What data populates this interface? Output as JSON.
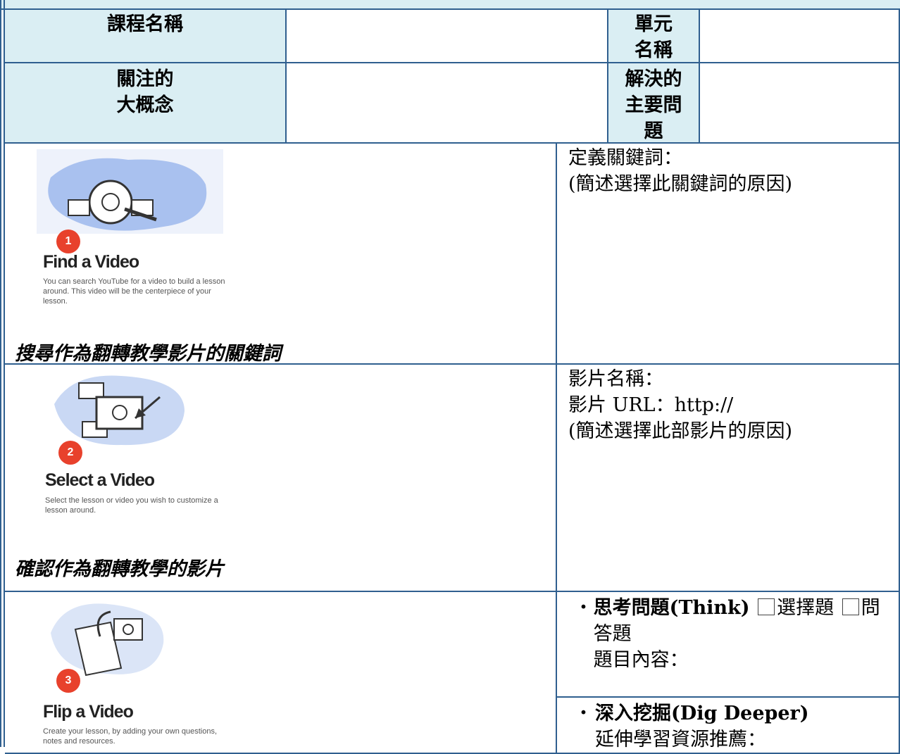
{
  "header": {
    "course_name_label": "課程名稱",
    "unit_name_label": "單元名稱",
    "big_idea_label_lines": [
      "關注的",
      "大概念"
    ],
    "main_question_label": "解決的主要問題"
  },
  "steps": [
    {
      "number": "1",
      "title": "Find a Video",
      "description": "You can search YouTube for a video to build a lesson around. This video will be the centerpiece of your lesson.",
      "caption": "搜尋作為翻轉教學影片的關鍵詞",
      "notes": [
        "定義關鍵詞：",
        "(簡述選擇此關鍵詞的原因)"
      ]
    },
    {
      "number": "2",
      "title": "Select a Video",
      "description": "Select the lesson or video you wish to customize a lesson around.",
      "notes": [
        "影片名稱：",
        "影片 URL：http://",
        "(簡述選擇此部影片的原因)"
      ],
      "caption": "確認作為翻轉教學的影片"
    },
    {
      "number": "3",
      "title": "Flip a Video",
      "description": "Create your lesson, by adding your own questions, notes and resources.",
      "think": {
        "bullet": "・",
        "label": "思考問題(Think)",
        "options": [
          "選擇題",
          "問答題"
        ],
        "content_label": "題目內容："
      },
      "dig": {
        "bullet": "・",
        "label": "深入挖掘(Dig Deeper)",
        "resources_label": "延伸學習資源推薦："
      }
    }
  ]
}
